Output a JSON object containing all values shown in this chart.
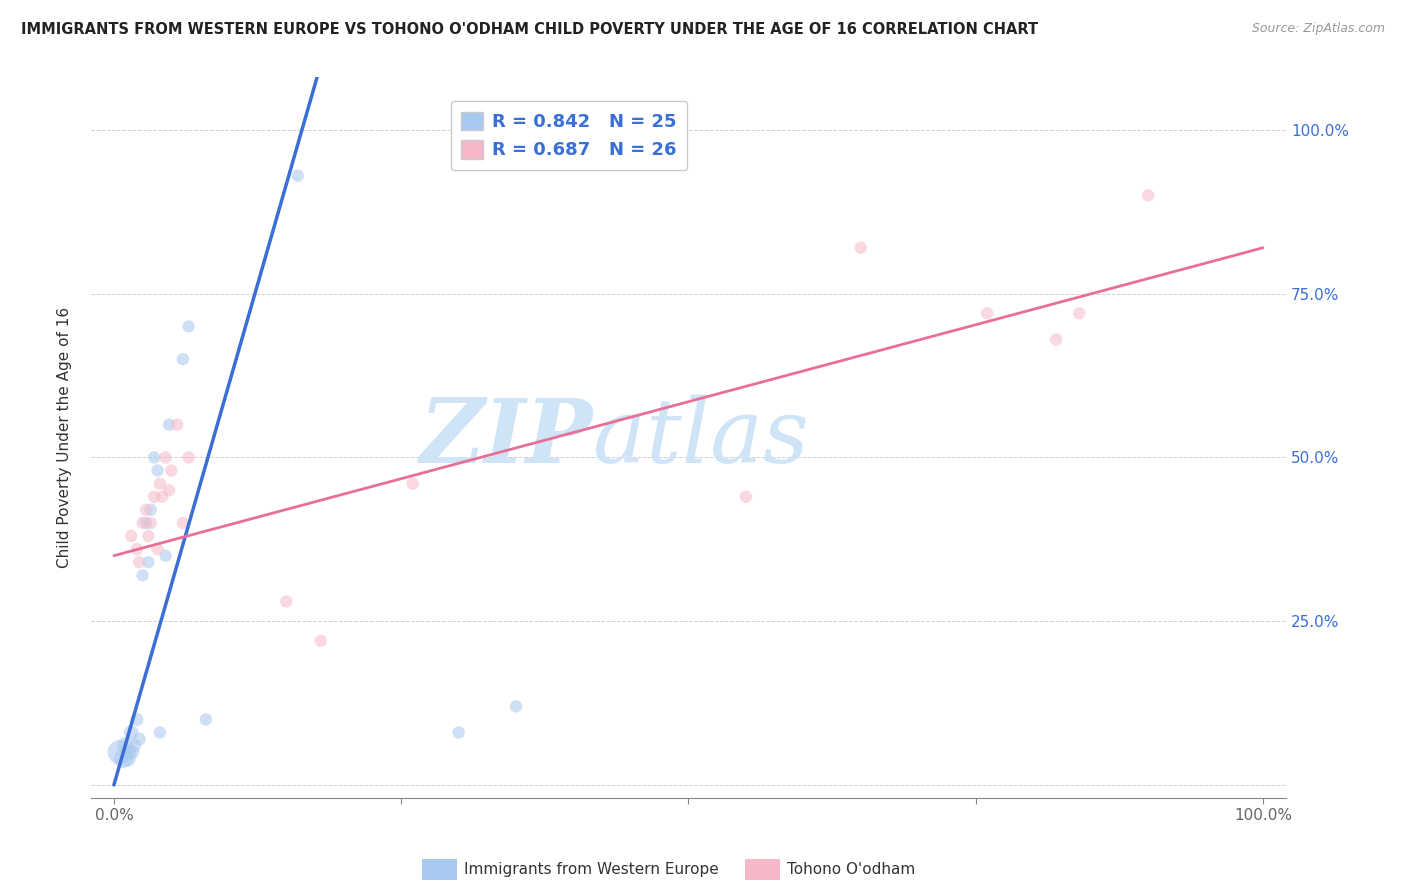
{
  "title": "IMMIGRANTS FROM WESTERN EUROPE VS TOHONO O'ODHAM CHILD POVERTY UNDER THE AGE OF 16 CORRELATION CHART",
  "source": "Source: ZipAtlas.com",
  "ylabel": "Child Poverty Under the Age of 16",
  "xlim": [
    -0.02,
    1.02
  ],
  "ylim": [
    -0.02,
    1.08
  ],
  "xticks": [
    0.0,
    0.25,
    0.5,
    0.75,
    1.0
  ],
  "yticks": [
    0.0,
    0.25,
    0.5,
    0.75,
    1.0
  ],
  "xticklabels": [
    "0.0%",
    "",
    "",
    "",
    "100.0%"
  ],
  "yticklabels_right": [
    "",
    "25.0%",
    "50.0%",
    "75.0%",
    "100.0%"
  ],
  "blue_color": "#a8c8f0",
  "pink_color": "#f5b8c8",
  "blue_line_color": "#3a6fd5",
  "pink_line_color": "#e87096",
  "R_blue": 0.842,
  "N_blue": 25,
  "R_pink": 0.687,
  "N_pink": 26,
  "legend_label_blue": "Immigrants from Western Europe",
  "legend_label_pink": "Tohono O'odham",
  "watermark_zip": "ZIP",
  "watermark_atlas": "atlas",
  "blue_scatter": [
    [
      0.005,
      0.05
    ],
    [
      0.008,
      0.04
    ],
    [
      0.01,
      0.06
    ],
    [
      0.012,
      0.04
    ],
    [
      0.013,
      0.05
    ],
    [
      0.015,
      0.08
    ],
    [
      0.016,
      0.05
    ],
    [
      0.018,
      0.06
    ],
    [
      0.02,
      0.1
    ],
    [
      0.022,
      0.07
    ],
    [
      0.025,
      0.32
    ],
    [
      0.028,
      0.4
    ],
    [
      0.03,
      0.34
    ],
    [
      0.032,
      0.42
    ],
    [
      0.035,
      0.5
    ],
    [
      0.038,
      0.48
    ],
    [
      0.04,
      0.08
    ],
    [
      0.045,
      0.35
    ],
    [
      0.048,
      0.55
    ],
    [
      0.06,
      0.65
    ],
    [
      0.065,
      0.7
    ],
    [
      0.08,
      0.1
    ],
    [
      0.16,
      0.93
    ],
    [
      0.3,
      0.08
    ],
    [
      0.35,
      0.12
    ]
  ],
  "blue_scatter_sizes": [
    300,
    180,
    150,
    130,
    120,
    110,
    100,
    90,
    90,
    90,
    80,
    80,
    80,
    80,
    80,
    80,
    80,
    80,
    80,
    80,
    80,
    80,
    80,
    80,
    80
  ],
  "pink_scatter": [
    [
      0.015,
      0.38
    ],
    [
      0.02,
      0.36
    ],
    [
      0.022,
      0.34
    ],
    [
      0.025,
      0.4
    ],
    [
      0.028,
      0.42
    ],
    [
      0.03,
      0.38
    ],
    [
      0.032,
      0.4
    ],
    [
      0.035,
      0.44
    ],
    [
      0.038,
      0.36
    ],
    [
      0.04,
      0.46
    ],
    [
      0.042,
      0.44
    ],
    [
      0.045,
      0.5
    ],
    [
      0.048,
      0.45
    ],
    [
      0.05,
      0.48
    ],
    [
      0.055,
      0.55
    ],
    [
      0.06,
      0.4
    ],
    [
      0.065,
      0.5
    ],
    [
      0.15,
      0.28
    ],
    [
      0.18,
      0.22
    ],
    [
      0.26,
      0.46
    ],
    [
      0.55,
      0.44
    ],
    [
      0.65,
      0.82
    ],
    [
      0.76,
      0.72
    ],
    [
      0.82,
      0.68
    ],
    [
      0.84,
      0.72
    ],
    [
      0.9,
      0.9
    ]
  ],
  "pink_scatter_sizes": [
    80,
    80,
    80,
    80,
    80,
    80,
    80,
    80,
    80,
    80,
    80,
    80,
    80,
    80,
    80,
    80,
    80,
    80,
    80,
    80,
    80,
    80,
    80,
    80,
    80,
    80
  ],
  "blue_line_x": [
    0.0,
    0.18
  ],
  "blue_line_y": [
    0.0,
    1.1
  ],
  "pink_line_x": [
    0.0,
    1.0
  ],
  "pink_line_y": [
    0.35,
    0.82
  ]
}
